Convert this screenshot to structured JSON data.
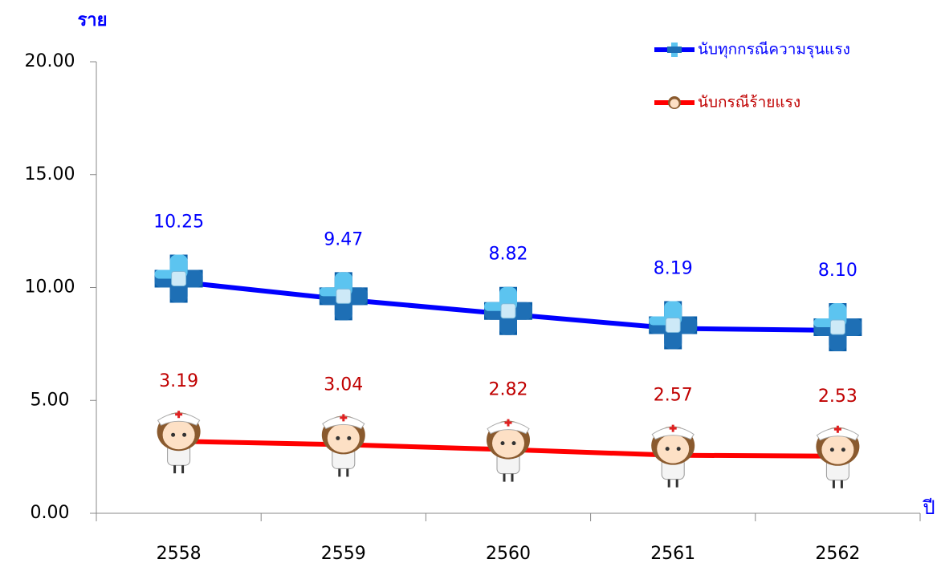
{
  "chart_data": {
    "type": "line",
    "y_label": "ราย",
    "x_label": "ปี",
    "categories": [
      "2558",
      "2559",
      "2560",
      "2561",
      "2562"
    ],
    "series": [
      {
        "name": "นับทุกกรณีความรุนแรง",
        "color": "#0000ff",
        "label_color": "#0000ff",
        "marker": "cross",
        "values": [
          10.25,
          9.47,
          8.82,
          8.19,
          8.1
        ],
        "value_labels": [
          "10.25",
          "9.47",
          "8.82",
          "8.19",
          "8.10"
        ]
      },
      {
        "name": "นับกรณีร้ายแรง",
        "color": "#ff0000",
        "label_color": "#c00000",
        "marker": "nurse",
        "values": [
          3.19,
          3.04,
          2.82,
          2.57,
          2.53
        ],
        "value_labels": [
          "3.19",
          "3.04",
          "2.82",
          "2.57",
          "2.53"
        ]
      }
    ],
    "ylim": [
      0,
      20
    ],
    "yticks": [
      {
        "value": 0,
        "label": "0.00"
      },
      {
        "value": 5,
        "label": "5.00"
      },
      {
        "value": 10,
        "label": "10.00"
      },
      {
        "value": 15,
        "label": "15.00"
      },
      {
        "value": 20,
        "label": "20.00"
      }
    ],
    "grid": false,
    "legend": "top-right"
  }
}
